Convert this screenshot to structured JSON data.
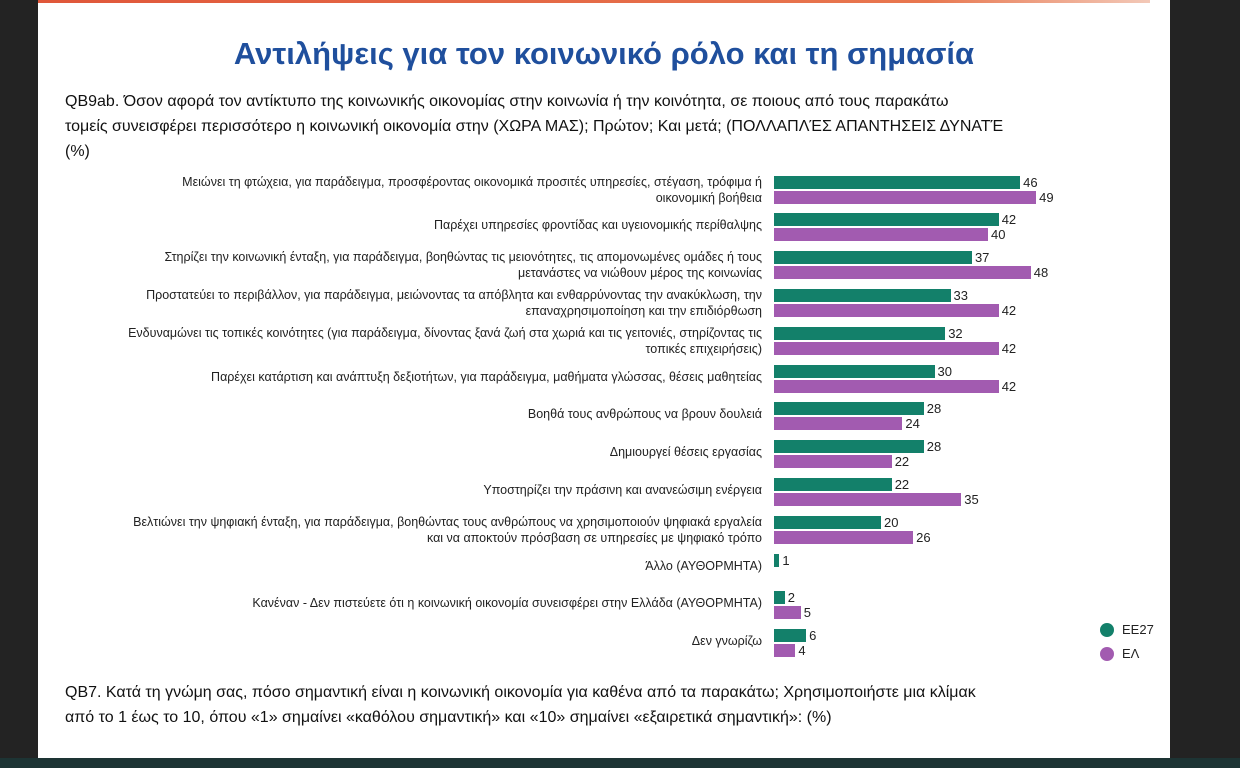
{
  "title": "Αντιλήψεις για τον κοινωνικό ρόλο και τη σημασία",
  "question_1": [
    "QB9ab. Όσον αφορά τον αντίκτυπο της κοινωνικής οικονομίας στην κοινωνία ή την κοινότητα, σε ποιους από τους παρακάτω",
    "τομείς συνεισφέρει περισσότερο η κοινωνική οικονομία στην (ΧΩΡΑ ΜΑΣ); Πρώτον; Και μετά; (ΠΟΛΛΑΠΛΈΣ ΑΠΑΝΤΗΣΕΙΣ ΔΥΝΑΤΈ",
    "(%)"
  ],
  "question_2": [
    "QB7. Κατά τη γνώμη σας, πόσο σημαντική είναι η κοινωνική οικονομία για καθένα από τα παρακάτω; Χρησιμοποιήστε μια κλίμακ",
    "από το 1 έως το 10, όπου «1» σημαίνει «καθόλου σημαντική» και «10» σημαίνει «εξαιρετικά σημαντική»: (%)"
  ],
  "chart_data": {
    "type": "bar",
    "orientation": "horizontal",
    "categories": [
      "Μειώνει τη φτώχεια, για παράδειγμα, προσφέροντας οικονομικά προσιτές υπηρεσίες, στέγαση, τρόφιμα ή\nοικονομική βοήθεια",
      "Παρέχει υπηρεσίες φροντίδας και υγειονομικής περίθαλψης",
      "Στηρίζει την κοινωνική ένταξη, για παράδειγμα, βοηθώντας τις μειονότητες, τις απομονωμένες ομάδες ή τους\nμετανάστες να νιώθουν μέρος της κοινωνίας",
      "Προστατεύει το περιβάλλον, για παράδειγμα, μειώνοντας τα απόβλητα και ενθαρρύνοντας την ανακύκλωση, την\nεπαναχρησιμοποίηση και την επιδιόρθωση",
      "Ενδυναμώνει τις τοπικές κοινότητες (για παράδειγμα, δίνοντας ξανά ζωή στα χωριά και τις γειτονιές, στηρίζοντας τις\nτοπικές επιχειρήσεις)",
      "Παρέχει κατάρτιση και ανάπτυξη δεξιοτήτων, για παράδειγμα, μαθήματα γλώσσας, θέσεις μαθητείας",
      "Βοηθά τους ανθρώπους να βρουν δουλειά",
      "Δημιουργεί θέσεις εργασίας",
      "Υποστηρίζει την πράσινη και ανανεώσιμη ενέργεια",
      "Βελτιώνει την ψηφιακή ένταξη, για παράδειγμα, βοηθώντας τους ανθρώπους να χρησιμοποιούν ψηφιακά εργαλεία\nκαι να αποκτούν πρόσβαση σε υπηρεσίες με ψηφιακό τρόπο",
      "Άλλο (ΑΥΘΟΡΜΗΤΑ)",
      "Κανέναν - Δεν πιστεύετε ότι η κοινωνική οικονομία συνεισφέρει στην Ελλάδα (ΑΥΘΟΡΜΗΤΑ)",
      "Δεν γνωρίζω"
    ],
    "series": [
      {
        "name": "ΕΕ27",
        "color": "#13806a",
        "values": [
          46,
          42,
          37,
          33,
          32,
          30,
          28,
          28,
          22,
          20,
          1,
          2,
          6
        ]
      },
      {
        "name": "ΕΛ",
        "color": "#a25bb0",
        "values": [
          49,
          40,
          48,
          42,
          42,
          42,
          24,
          22,
          35,
          26,
          null,
          5,
          4
        ]
      }
    ],
    "xlim": [
      0,
      50
    ],
    "axes_visible": false,
    "grid": false,
    "data_labels": true,
    "legend_position": "bottom-right"
  }
}
